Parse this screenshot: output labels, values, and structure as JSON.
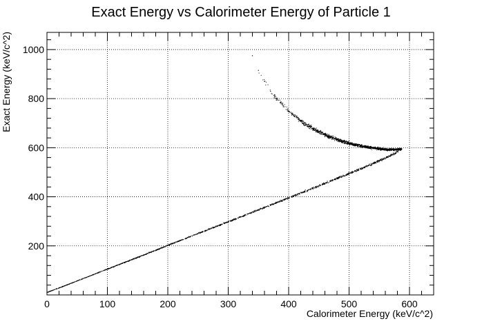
{
  "chart_data": {
    "type": "scatter",
    "title": "Exact Energy vs Calorimeter Energy of Particle 1",
    "xlabel": "Calorimeter Energy (keV/c^2)",
    "ylabel": "Exact Energy (keV/c^2)",
    "xlim": [
      0,
      640
    ],
    "ylim": [
      0,
      1070
    ],
    "xticks": [
      0,
      100,
      200,
      300,
      400,
      500,
      600
    ],
    "yticks": [
      200,
      400,
      600,
      800,
      1000
    ],
    "xtick_labels": [
      "0",
      "100",
      "200",
      "300",
      "400",
      "500",
      "600"
    ],
    "ytick_labels": [
      "200",
      "400",
      "600",
      "800",
      "1000"
    ],
    "grid": true,
    "legend": "none",
    "series": [
      {
        "x": [
          0,
          25,
          50,
          75,
          100,
          125,
          150,
          175,
          200,
          225,
          250,
          275,
          300,
          325,
          350,
          375,
          400,
          425,
          450,
          475,
          500,
          525,
          550,
          575,
          587
        ],
        "y": [
          10,
          33,
          57,
          81,
          105,
          129,
          153,
          177,
          202,
          226,
          250,
          274,
          298,
          322,
          347,
          371,
          395,
          420,
          445,
          470,
          495,
          520,
          547,
          575,
          595
        ]
      },
      {
        "x": [
          340,
          350,
          360,
          370,
          380,
          390,
          400,
          410,
          420,
          430,
          440,
          450,
          460,
          470,
          480,
          490,
          500,
          510,
          520,
          530,
          540,
          550,
          560,
          570,
          580,
          587
        ],
        "y": [
          975,
          915,
          870,
          830,
          800,
          775,
          750,
          728,
          710,
          693,
          678,
          665,
          653,
          643,
          633,
          625,
          618,
          612,
          607,
          603,
          599,
          596,
          593,
          592,
          593,
          595
        ]
      }
    ]
  }
}
